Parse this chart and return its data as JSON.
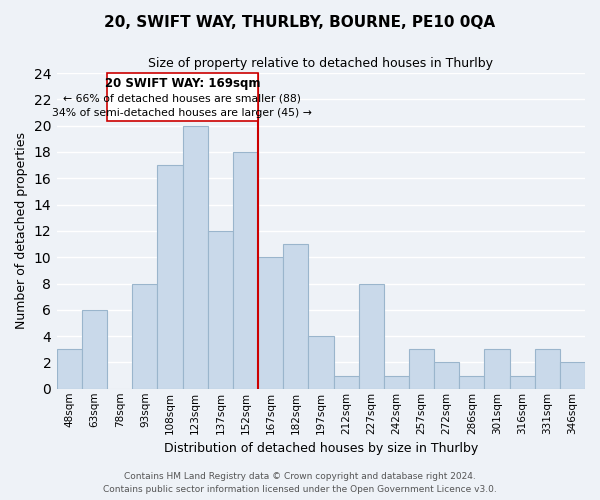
{
  "title": "20, SWIFT WAY, THURLBY, BOURNE, PE10 0QA",
  "subtitle": "Size of property relative to detached houses in Thurlby",
  "xlabel": "Distribution of detached houses by size in Thurlby",
  "ylabel": "Number of detached properties",
  "bin_labels": [
    "48sqm",
    "63sqm",
    "78sqm",
    "93sqm",
    "108sqm",
    "123sqm",
    "137sqm",
    "152sqm",
    "167sqm",
    "182sqm",
    "197sqm",
    "212sqm",
    "227sqm",
    "242sqm",
    "257sqm",
    "272sqm",
    "286sqm",
    "301sqm",
    "316sqm",
    "331sqm",
    "346sqm"
  ],
  "bar_heights": [
    3,
    6,
    0,
    8,
    17,
    20,
    12,
    18,
    10,
    11,
    4,
    1,
    8,
    1,
    3,
    2,
    1,
    3,
    1,
    3,
    2
  ],
  "bar_color": "#c9d9ea",
  "bar_edge_color": "#9ab5cc",
  "highlight_line_color": "#cc0000",
  "ylim": [
    0,
    24
  ],
  "yticks": [
    0,
    2,
    4,
    6,
    8,
    10,
    12,
    14,
    16,
    18,
    20,
    22,
    24
  ],
  "annotation_title": "20 SWIFT WAY: 169sqm",
  "annotation_line1": "← 66% of detached houses are smaller (88)",
  "annotation_line2": "34% of semi-detached houses are larger (45) →",
  "annotation_box_color": "#ffffff",
  "annotation_box_edge": "#cc0000",
  "footer_line1": "Contains HM Land Registry data © Crown copyright and database right 2024.",
  "footer_line2": "Contains public sector information licensed under the Open Government Licence v3.0.",
  "background_color": "#eef2f7",
  "grid_color": "#ffffff",
  "title_fontsize": 11,
  "subtitle_fontsize": 9,
  "axis_label_fontsize": 9,
  "tick_fontsize": 7.5,
  "footer_fontsize": 6.5
}
